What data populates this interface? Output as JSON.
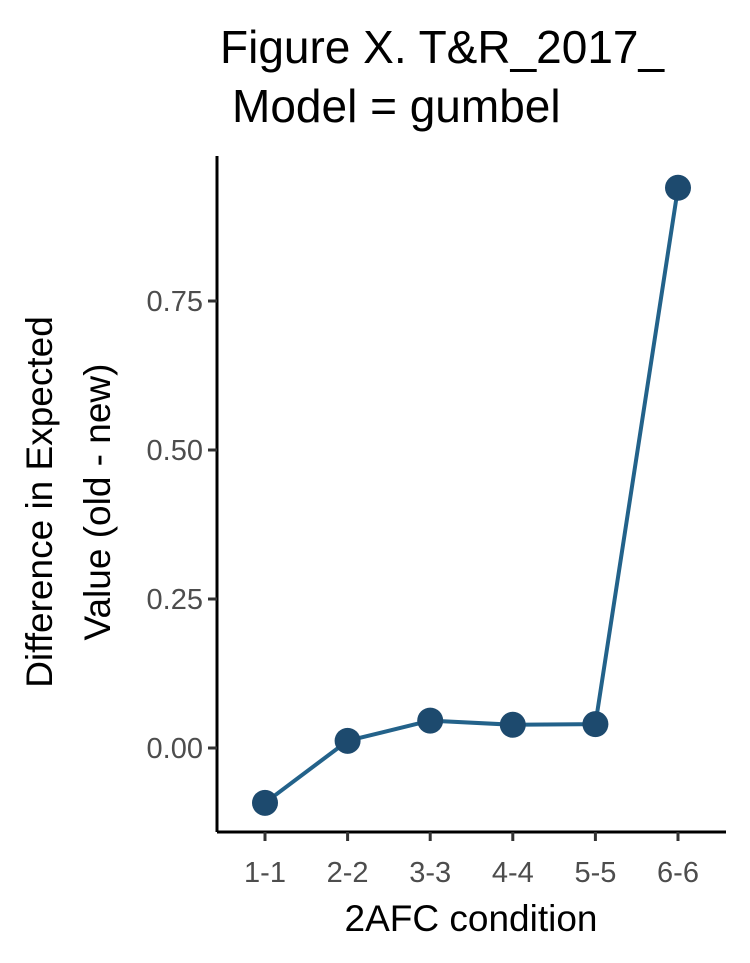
{
  "chart_data": {
    "type": "line",
    "title_lines": [
      "Figure X. T&R_2017_",
      "Model = gumbel"
    ],
    "xlabel": "2AFC condition",
    "ylabel_lines": [
      "Difference in Expected",
      "Value (old - new)"
    ],
    "categories": [
      "1-1",
      "2-2",
      "3-3",
      "4-4",
      "5-5",
      "6-6"
    ],
    "values": [
      -0.092,
      0.012,
      0.046,
      0.039,
      0.04,
      0.94
    ],
    "ylim": [
      -0.14,
      0.97
    ],
    "y_ticks": [
      0.0,
      0.25,
      0.5,
      0.75
    ],
    "y_tick_labels": [
      "0.00",
      "0.25",
      "0.50",
      "0.75"
    ],
    "grid": false,
    "legend": "none",
    "line_color": "#23628a",
    "point_color": "#1d4a6e"
  }
}
